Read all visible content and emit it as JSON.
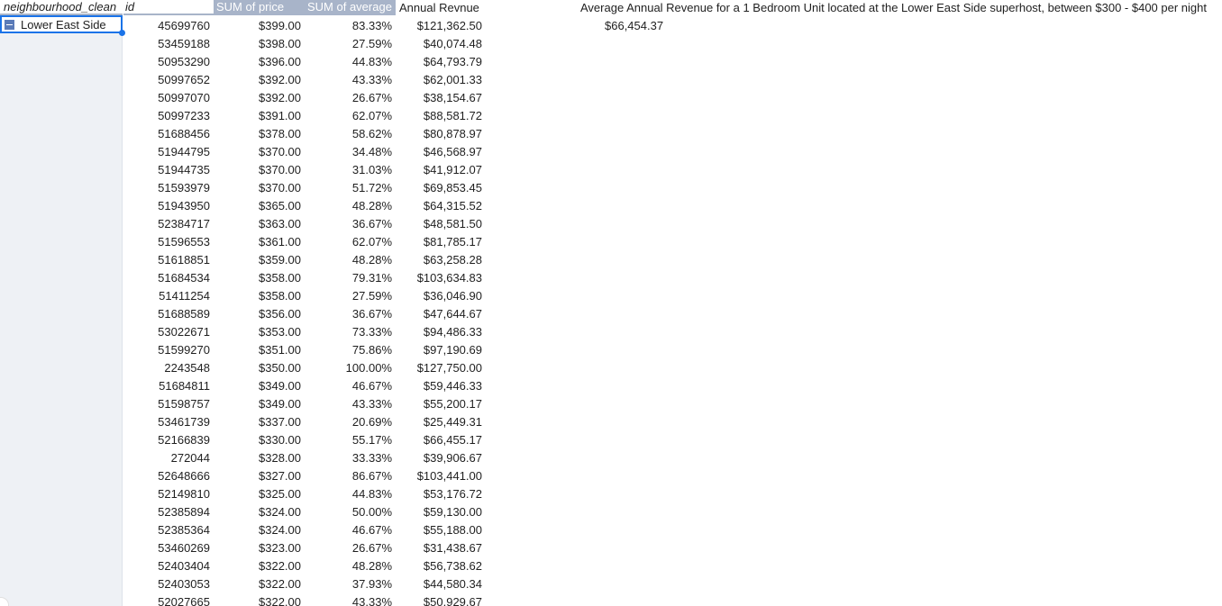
{
  "headers": {
    "neighbourhood": "neighbourhood_clean",
    "id": "id",
    "price": "SUM of price",
    "average": "SUM of average",
    "revenue": "Annual Revnue"
  },
  "group": {
    "label": "Lower East Side"
  },
  "summary": {
    "title": "Average Annual Revenue for a 1 Bedroom Unit located at the Lower East Side superhost, between $300 - $400 per night",
    "value": "$66,454.37"
  },
  "rows": [
    {
      "id": "45699760",
      "price": "$399.00",
      "average": "83.33%",
      "revenue": "$121,362.50"
    },
    {
      "id": "53459188",
      "price": "$398.00",
      "average": "27.59%",
      "revenue": "$40,074.48"
    },
    {
      "id": "50953290",
      "price": "$396.00",
      "average": "44.83%",
      "revenue": "$64,793.79"
    },
    {
      "id": "50997652",
      "price": "$392.00",
      "average": "43.33%",
      "revenue": "$62,001.33"
    },
    {
      "id": "50997070",
      "price": "$392.00",
      "average": "26.67%",
      "revenue": "$38,154.67"
    },
    {
      "id": "50997233",
      "price": "$391.00",
      "average": "62.07%",
      "revenue": "$88,581.72"
    },
    {
      "id": "51688456",
      "price": "$378.00",
      "average": "58.62%",
      "revenue": "$80,878.97"
    },
    {
      "id": "51944795",
      "price": "$370.00",
      "average": "34.48%",
      "revenue": "$46,568.97"
    },
    {
      "id": "51944735",
      "price": "$370.00",
      "average": "31.03%",
      "revenue": "$41,912.07"
    },
    {
      "id": "51593979",
      "price": "$370.00",
      "average": "51.72%",
      "revenue": "$69,853.45"
    },
    {
      "id": "51943950",
      "price": "$365.00",
      "average": "48.28%",
      "revenue": "$64,315.52"
    },
    {
      "id": "52384717",
      "price": "$363.00",
      "average": "36.67%",
      "revenue": "$48,581.50"
    },
    {
      "id": "51596553",
      "price": "$361.00",
      "average": "62.07%",
      "revenue": "$81,785.17"
    },
    {
      "id": "51618851",
      "price": "$359.00",
      "average": "48.28%",
      "revenue": "$63,258.28"
    },
    {
      "id": "51684534",
      "price": "$358.00",
      "average": "79.31%",
      "revenue": "$103,634.83"
    },
    {
      "id": "51411254",
      "price": "$358.00",
      "average": "27.59%",
      "revenue": "$36,046.90"
    },
    {
      "id": "51688589",
      "price": "$356.00",
      "average": "36.67%",
      "revenue": "$47,644.67"
    },
    {
      "id": "53022671",
      "price": "$353.00",
      "average": "73.33%",
      "revenue": "$94,486.33"
    },
    {
      "id": "51599270",
      "price": "$351.00",
      "average": "75.86%",
      "revenue": "$97,190.69"
    },
    {
      "id": "2243548",
      "price": "$350.00",
      "average": "100.00%",
      "revenue": "$127,750.00"
    },
    {
      "id": "51684811",
      "price": "$349.00",
      "average": "46.67%",
      "revenue": "$59,446.33"
    },
    {
      "id": "51598757",
      "price": "$349.00",
      "average": "43.33%",
      "revenue": "$55,200.17"
    },
    {
      "id": "53461739",
      "price": "$337.00",
      "average": "20.69%",
      "revenue": "$25,449.31"
    },
    {
      "id": "52166839",
      "price": "$330.00",
      "average": "55.17%",
      "revenue": "$66,455.17"
    },
    {
      "id": "272044",
      "price": "$328.00",
      "average": "33.33%",
      "revenue": "$39,906.67"
    },
    {
      "id": "52648666",
      "price": "$327.00",
      "average": "86.67%",
      "revenue": "$103,441.00"
    },
    {
      "id": "52149810",
      "price": "$325.00",
      "average": "44.83%",
      "revenue": "$53,176.72"
    },
    {
      "id": "52385894",
      "price": "$324.00",
      "average": "50.00%",
      "revenue": "$59,130.00"
    },
    {
      "id": "52385364",
      "price": "$324.00",
      "average": "46.67%",
      "revenue": "$55,188.00"
    },
    {
      "id": "53460269",
      "price": "$323.00",
      "average": "26.67%",
      "revenue": "$31,438.67"
    },
    {
      "id": "52403404",
      "price": "$322.00",
      "average": "48.28%",
      "revenue": "$56,738.62"
    },
    {
      "id": "52403053",
      "price": "$322.00",
      "average": "37.93%",
      "revenue": "$44,580.34"
    },
    {
      "id": "52027665",
      "price": "$322.00",
      "average": "43.33%",
      "revenue": "$50,929.67"
    }
  ]
}
